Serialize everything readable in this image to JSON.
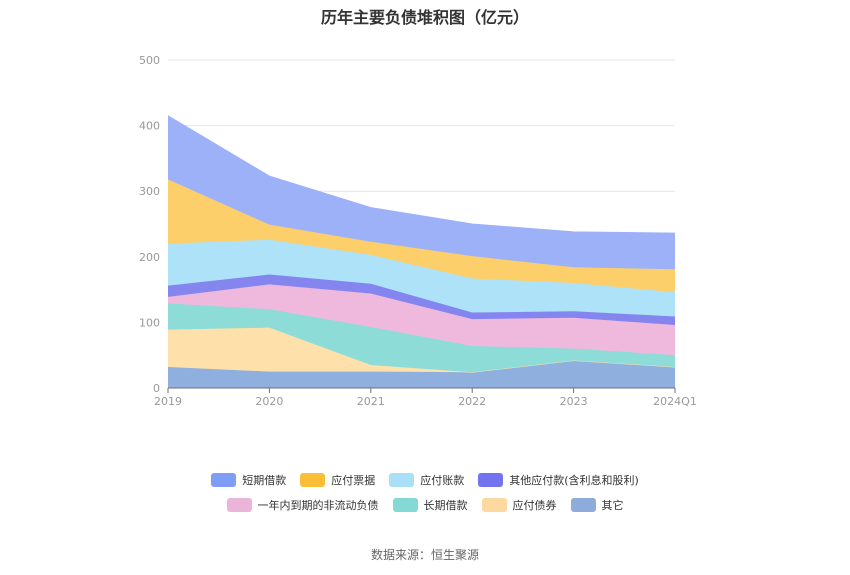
{
  "chart_data": {
    "type": "area",
    "title": "历年主要负债堆积图（亿元）",
    "categories": [
      "2019",
      "2020",
      "2021",
      "2022",
      "2023",
      "2024Q1"
    ],
    "ylim": [
      0,
      500
    ],
    "yticks": [
      "0",
      "100",
      "200",
      "300",
      "400",
      "500"
    ],
    "stacked": true,
    "grid": true,
    "legend_position": "bottom",
    "series": [
      {
        "name": "其它",
        "color": "#8fb0de",
        "values": [
          32,
          25,
          25,
          24,
          42,
          32
        ]
      },
      {
        "name": "应付债券",
        "color": "#fde0aa",
        "values": [
          57,
          67,
          10,
          0,
          0,
          0
        ]
      },
      {
        "name": "长期借款",
        "color": "#8edcd8",
        "values": [
          40,
          28,
          58,
          40,
          18,
          18
        ]
      },
      {
        "name": "一年内到期的非流动负债",
        "color": "#eeb9dc",
        "values": [
          10,
          38,
          51,
          41,
          47,
          46
        ]
      },
      {
        "name": "其他应付款(含利息和股利)",
        "color": "#8585f0",
        "values": [
          17,
          15,
          15,
          10,
          10,
          13
        ]
      },
      {
        "name": "应付账款",
        "color": "#ade2f8",
        "values": [
          64,
          53,
          44,
          52,
          43,
          37
        ]
      },
      {
        "name": "应付票据",
        "color": "#fccf6a",
        "values": [
          98,
          23,
          20,
          34,
          24,
          35
        ]
      },
      {
        "name": "短期借款",
        "color": "#9db1f8",
        "values": [
          97,
          74,
          52,
          49,
          54,
          55
        ]
      }
    ],
    "legend": [
      [
        {
          "name": "短期借款",
          "color": "#7e9ef6"
        },
        {
          "name": "应付票据",
          "color": "#fbbf37"
        },
        {
          "name": "应付账款",
          "color": "#a9e0f7"
        },
        {
          "name": "其他应付款(含利息和股利)",
          "color": "#7373ef"
        }
      ],
      [
        {
          "name": "一年内到期的非流动负债",
          "color": "#eab5d9"
        },
        {
          "name": "长期借款",
          "color": "#84d9d5"
        },
        {
          "name": "应付债券",
          "color": "#fcd9a0"
        },
        {
          "name": "其它",
          "color": "#8eacdb"
        }
      ]
    ]
  },
  "source_text": "数据来源：恒生聚源"
}
